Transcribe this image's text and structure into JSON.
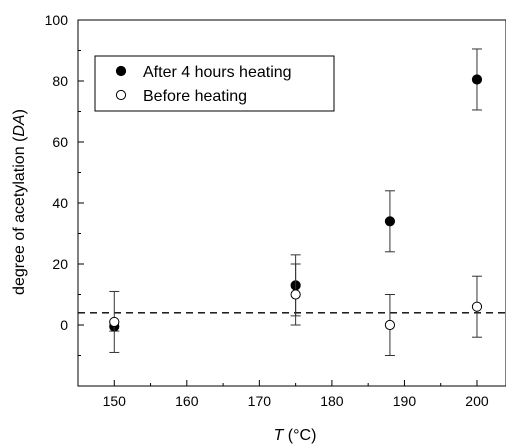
{
  "chart_data": {
    "type": "scatter",
    "xlabel_var": "T",
    "xlabel_unit": " (°C)",
    "ylabel_main": "degree of acetylation (",
    "ylabel_var": "DA",
    "ylabel_end": ")",
    "xlim": [
      145,
      204
    ],
    "ylim": [
      -20,
      100
    ],
    "x_ticks": [
      150,
      160,
      170,
      180,
      190,
      200
    ],
    "y_ticks": [
      0,
      20,
      40,
      60,
      80,
      100
    ],
    "grid": false,
    "legend_position": "top-left",
    "reference_line": {
      "y": 4,
      "style": "dashed"
    },
    "series": [
      {
        "name": "After 4 hours heating",
        "marker": "filled-circle",
        "points": [
          {
            "x": 150,
            "y": -0.5,
            "err": 1.5
          },
          {
            "x": 175,
            "y": 13,
            "err": 10
          },
          {
            "x": 188,
            "y": 34,
            "err": 10
          },
          {
            "x": 200,
            "y": 80.5,
            "err": 10
          }
        ]
      },
      {
        "name": "Before heating",
        "marker": "open-circle",
        "points": [
          {
            "x": 150,
            "y": 1,
            "err": 10
          },
          {
            "x": 175,
            "y": 10,
            "err": 10
          },
          {
            "x": 188,
            "y": 0,
            "err": 10
          },
          {
            "x": 200,
            "y": 6,
            "err": 10
          }
        ]
      }
    ]
  }
}
